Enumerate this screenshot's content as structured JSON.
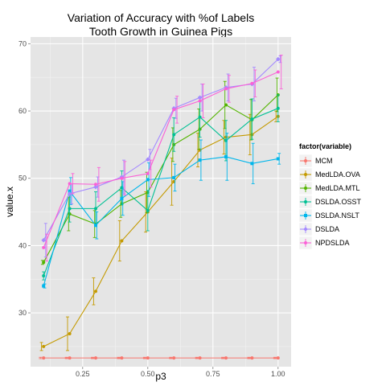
{
  "chart_data": {
    "type": "line",
    "title_line1": "Variation of Accuracy with %of Labels",
    "title_line2": "Tooth Growth in Guinea Pigs",
    "xlabel": "p3",
    "ylabel": "value.x",
    "xlim": [
      0.05,
      1.05
    ],
    "ylim": [
      22,
      71
    ],
    "xticks": [
      {
        "value": 0.25,
        "label": "0.25"
      },
      {
        "value": 0.5,
        "label": "0.50"
      },
      {
        "value": 0.75,
        "label": "0.75"
      },
      {
        "value": 1.0,
        "label": "1.00"
      }
    ],
    "yticks": [
      {
        "value": 30,
        "label": "30"
      },
      {
        "value": 40,
        "label": "40"
      },
      {
        "value": 50,
        "label": "50"
      },
      {
        "value": 60,
        "label": "60"
      },
      {
        "value": 70,
        "label": "70"
      }
    ],
    "grid": true,
    "legend_title": "factor(variable)",
    "legend_position": "right",
    "x": [
      0.1,
      0.2,
      0.3,
      0.4,
      0.5,
      0.6,
      0.7,
      0.8,
      0.9,
      1.0
    ],
    "series": [
      {
        "name": "MCM",
        "color": "#F8766D",
        "marker": "circle",
        "values": [
          23.3,
          23.3,
          23.3,
          23.3,
          23.3,
          23.3,
          23.3,
          23.3,
          23.3,
          23.3
        ],
        "err": [
          0.1,
          0.1,
          0.1,
          0.1,
          0.1,
          0.1,
          0.1,
          0.1,
          0.1,
          0.1
        ]
      },
      {
        "name": "MedLDA.OVA",
        "color": "#C49A00",
        "marker": "circle",
        "values": [
          25.0,
          26.9,
          33.2,
          40.7,
          45.0,
          49.5,
          54.2,
          56.1,
          56.5,
          59.2
        ],
        "err": [
          0.6,
          2.5,
          2.0,
          3.0,
          3.0,
          3.5,
          2.5,
          2.5,
          3.0,
          0.8
        ]
      },
      {
        "name": "MedLDA.MTL",
        "color": "#53B400",
        "marker": "circle",
        "values": [
          37.5,
          44.7,
          43.2,
          46.2,
          47.9,
          55.0,
          57.3,
          60.9,
          58.7,
          62.4
        ],
        "err": [
          0.3,
          2.5,
          2.0,
          2.0,
          3.0,
          2.5,
          3.0,
          3.5,
          3.0,
          2.5
        ]
      },
      {
        "name": "DSLDA.OSST",
        "color": "#00C094",
        "marker": "circle",
        "values": [
          35.5,
          45.5,
          45.5,
          48.6,
          45.2,
          56.5,
          59.1,
          55.6,
          58.8,
          60.4
        ],
        "err": [
          0.6,
          2.0,
          2.5,
          2.5,
          3.0,
          2.5,
          3.0,
          3.0,
          3.0,
          2.0
        ]
      },
      {
        "name": "DSLDA.NSLT",
        "color": "#00B6EB",
        "marker": "square",
        "values": [
          34.0,
          48.1,
          43.0,
          47.0,
          49.8,
          50.1,
          52.7,
          53.2,
          52.2,
          52.9
        ],
        "err": [
          0.3,
          2.0,
          2.0,
          2.5,
          2.5,
          2.0,
          3.0,
          3.5,
          3.0,
          0.8
        ]
      },
      {
        "name": "DSLDA",
        "color": "#A58AFF",
        "marker": "diamond",
        "values": [
          40.8,
          47.7,
          48.7,
          50.2,
          52.8,
          60.4,
          62.0,
          63.5,
          64.0,
          67.7
        ],
        "err": [
          2.5,
          1.5,
          1.5,
          2.5,
          1.5,
          1.5,
          2.0,
          2.0,
          2.5,
          0.5
        ]
      },
      {
        "name": "NPDSLDA",
        "color": "#FB61D7",
        "marker": "circle",
        "values": [
          39.7,
          49.2,
          49.1,
          50.0,
          50.7,
          60.2,
          61.5,
          63.3,
          64.1,
          65.8
        ],
        "err": [
          2.0,
          1.5,
          2.5,
          2.5,
          2.0,
          2.0,
          2.5,
          2.0,
          2.0,
          2.5
        ]
      }
    ]
  }
}
